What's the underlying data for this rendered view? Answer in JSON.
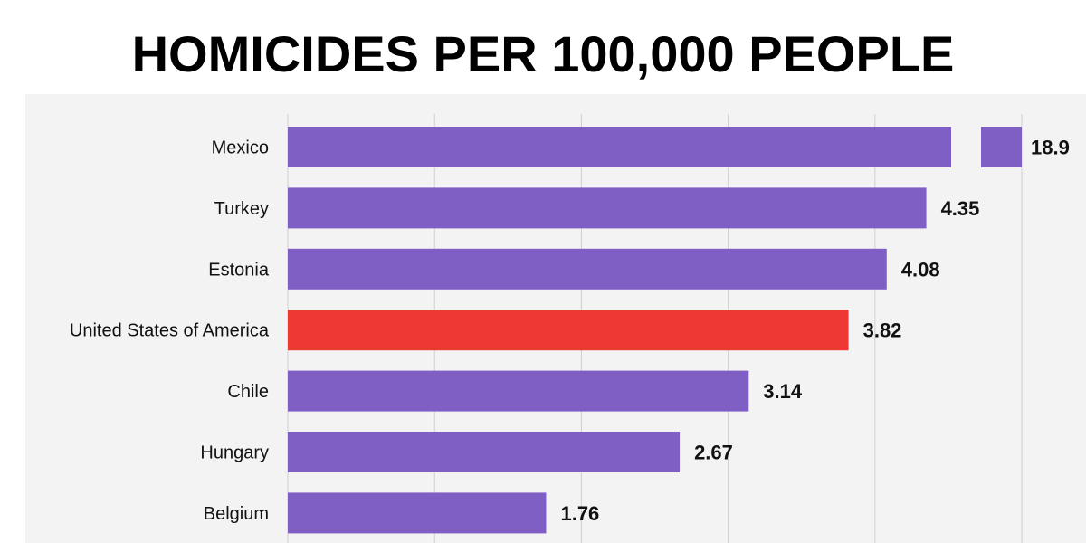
{
  "title": "HOMICIDES PER 100,000 PEOPLE",
  "chart_data": {
    "type": "bar",
    "orientation": "horizontal",
    "broken_axis": true,
    "categories": [
      "Mexico",
      "Turkey",
      "Estonia",
      "United States of America",
      "Chile",
      "Hungary",
      "Belgium"
    ],
    "values": [
      18.9,
      4.35,
      4.08,
      3.82,
      3.14,
      2.67,
      1.76
    ],
    "value_labels": [
      "18.9",
      "4.35",
      "4.08",
      "3.82",
      "3.14",
      "2.67",
      "1.76"
    ],
    "highlight_category": "United States of America",
    "xlim": [
      0,
      5
    ],
    "gridlines": [
      1,
      2,
      3,
      4,
      5
    ],
    "grid": true,
    "colors": {
      "bar": "#7f5fc4",
      "highlight": "#ee3834",
      "grid": "#cfcfcf",
      "label": "#111111",
      "panel": "#f3f3f3"
    }
  }
}
